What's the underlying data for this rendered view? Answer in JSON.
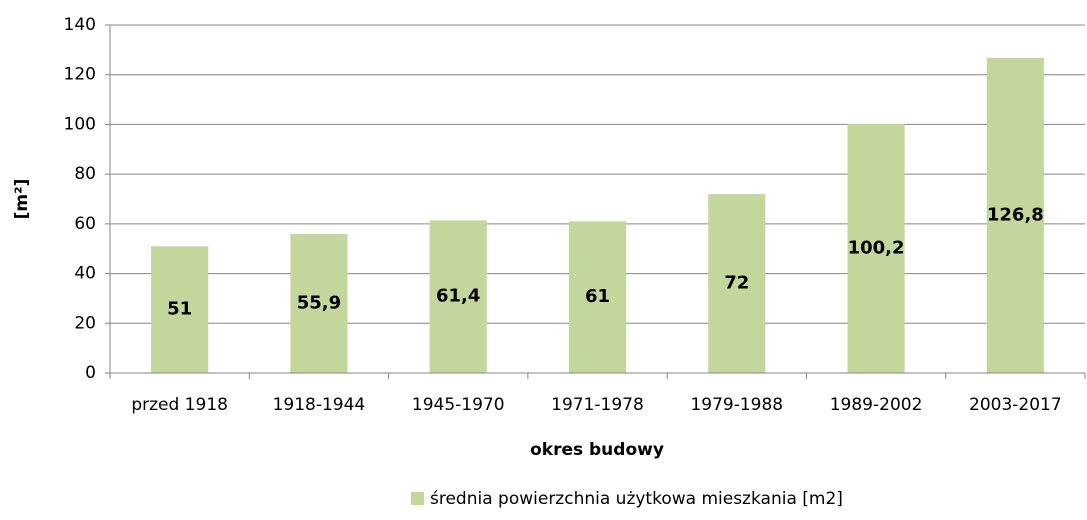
{
  "chart_data": {
    "type": "bar",
    "xlabel": "okres budowy",
    "ylabel": "[m²]",
    "categories": [
      "przed 1918",
      "1918-1944",
      "1945-1970",
      "1971-1978",
      "1979-1988",
      "1989-2002",
      "2003-2017"
    ],
    "series": [
      {
        "name": "średnia powierzchnia użytkowa mieszkania [m2]",
        "color": "#c3d69b",
        "values": [
          51,
          55.9,
          61.4,
          61,
          72,
          100.2,
          126.8
        ],
        "value_labels": [
          "51",
          "55,9",
          "61,4",
          "61",
          "72",
          "100,2",
          "126,8"
        ]
      }
    ],
    "ylim": [
      0,
      140
    ],
    "yticks": [
      0,
      20,
      40,
      60,
      80,
      100,
      120,
      140
    ],
    "grid": true,
    "legend": "bottom"
  }
}
